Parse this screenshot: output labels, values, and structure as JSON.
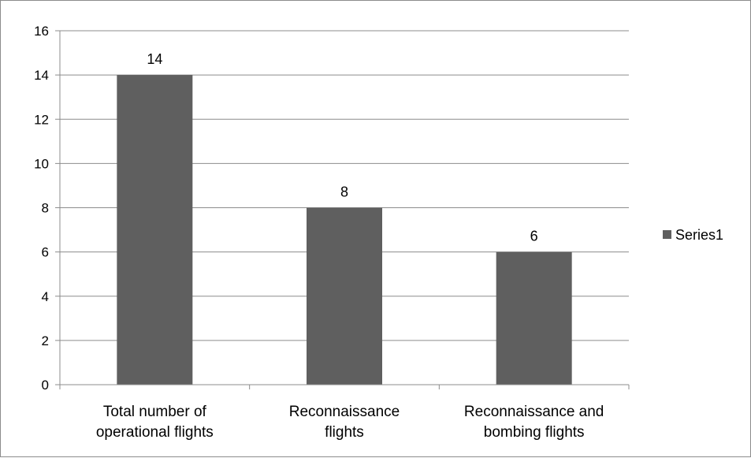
{
  "chart_data": {
    "type": "bar",
    "categories": [
      [
        "Total number of",
        "operational flights"
      ],
      [
        "Reconnaissance",
        "flights"
      ],
      [
        "Reconnaissance and",
        "bombing flights"
      ]
    ],
    "series": [
      {
        "name": "Series1",
        "values": [
          14,
          8,
          6
        ],
        "color": "#5f5f5f"
      }
    ],
    "ylim": [
      0,
      16
    ],
    "yticks": [
      0,
      2,
      4,
      6,
      8,
      10,
      12,
      14,
      16
    ],
    "grid": true,
    "data_labels": true,
    "legend_position": "right"
  }
}
